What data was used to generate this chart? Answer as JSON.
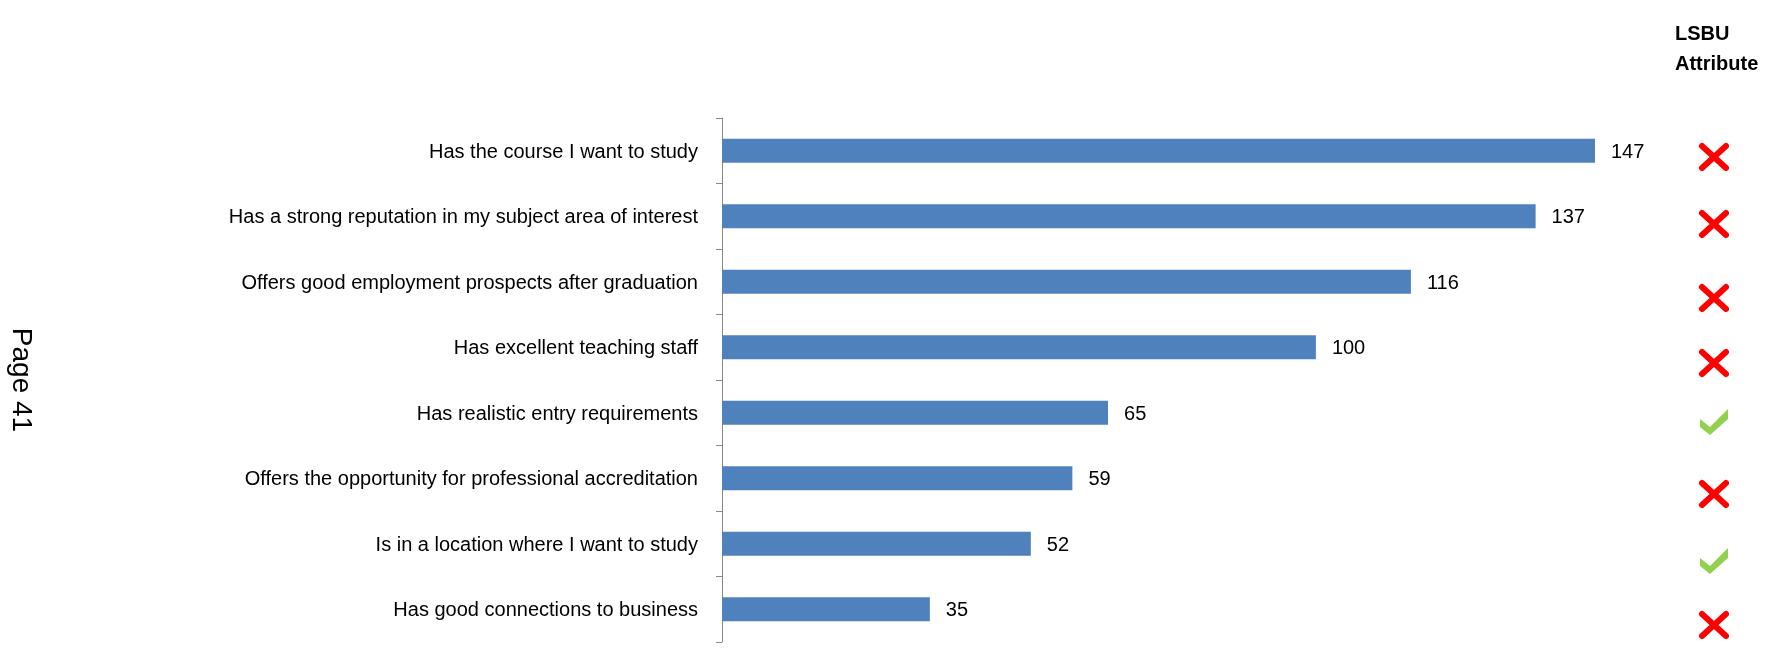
{
  "chart_data": {
    "type": "bar",
    "orientation": "horizontal",
    "title": "LSBU Attribute",
    "categories": [
      "Has the course I want to study",
      "Has a strong reputation in my subject area of interest",
      "Offers good employment prospects after graduation",
      "Has excellent teaching staff",
      "Has realistic entry requirements",
      "Offers the opportunity for professional accreditation",
      "Is in a location where I want to study",
      "Has good connections to business"
    ],
    "values": [
      147,
      137,
      116,
      100,
      65,
      59,
      52,
      35
    ],
    "color": "#4f81bd",
    "data_labels": true,
    "annotations": [
      "Page 41"
    ]
  }
}
